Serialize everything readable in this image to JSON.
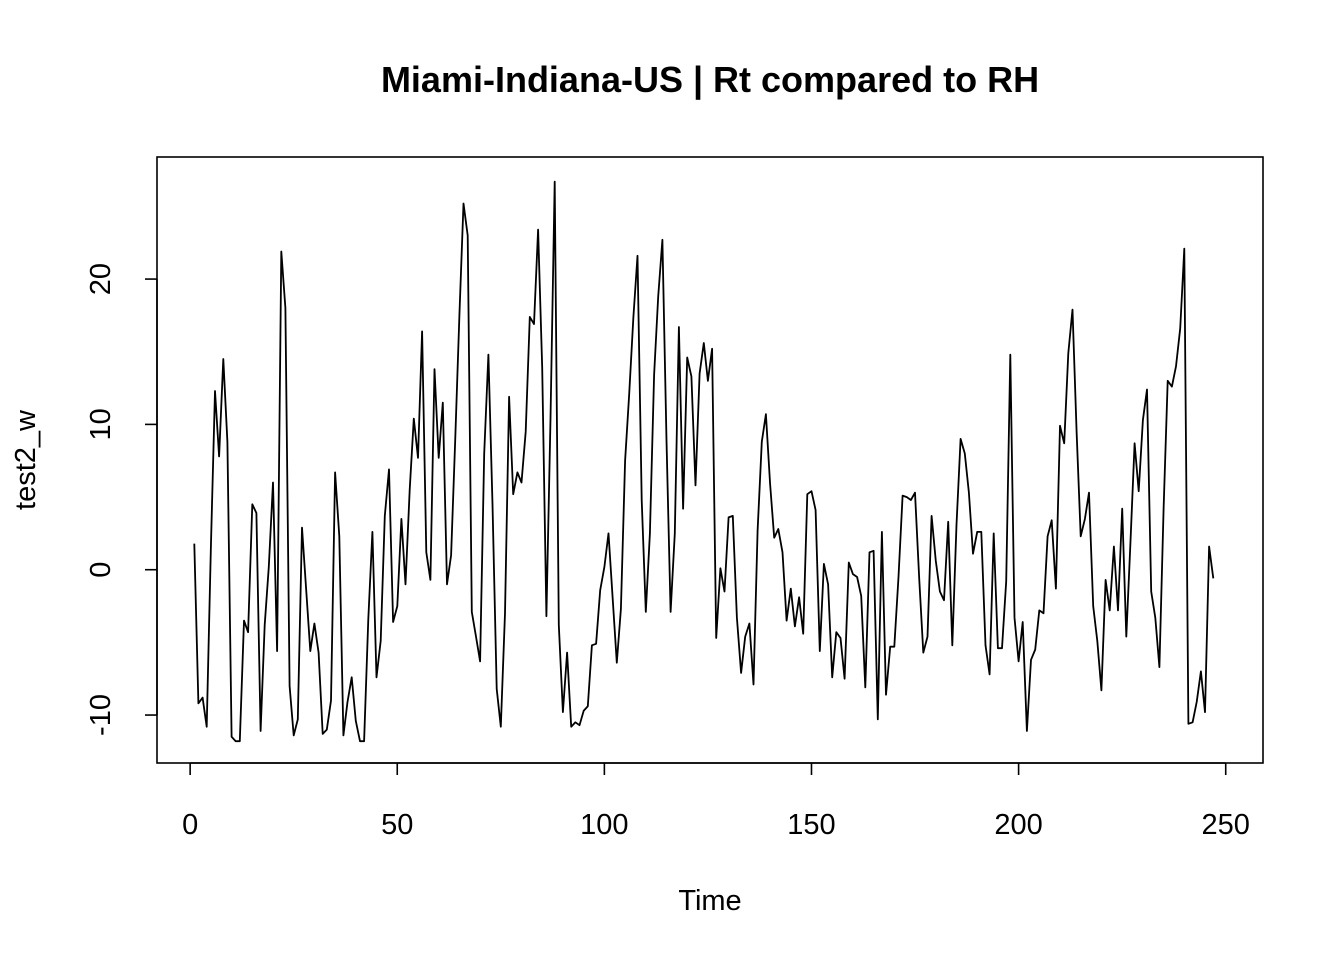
{
  "chart_data": {
    "type": "line",
    "title": "Miami-Indiana-US | Rt compared to RH",
    "xlabel": "Time",
    "ylabel": "test2_w",
    "xlim": [
      -8,
      259
    ],
    "ylim": [
      -13.3,
      28.4
    ],
    "xticks": [
      0,
      50,
      100,
      150,
      200,
      250
    ],
    "yticks": [
      -10,
      0,
      10,
      20
    ],
    "grid": false,
    "legend": "none",
    "line_color": "#000000",
    "series": [
      {
        "x_start": 1,
        "values": [
          1.8,
          -9.2,
          -8.8,
          -10.8,
          1.6,
          12.3,
          7.8,
          14.5,
          8.8,
          -11.5,
          -11.8,
          -11.8,
          -3.5,
          -4.3,
          4.5,
          3.9,
          -11.1,
          -3.8,
          0.2,
          6.0,
          -5.6,
          21.9,
          18.0,
          -8.0,
          -11.4,
          -10.3,
          2.9,
          -1.3,
          -5.6,
          -3.7,
          -5.7,
          -11.3,
          -11.0,
          -9.0,
          6.7,
          2.3,
          -11.4,
          -9.1,
          -7.4,
          -10.4,
          -11.8,
          -11.8,
          -3.4,
          2.6,
          -7.4,
          -4.9,
          3.7,
          6.9,
          -3.6,
          -2.5,
          3.5,
          -1.0,
          5.5,
          10.4,
          7.7,
          16.4,
          1.2,
          -0.7,
          13.8,
          7.7,
          11.5,
          -1.0,
          1.0,
          8.9,
          17.5,
          25.2,
          23.0,
          -2.9,
          -4.6,
          -6.3,
          8.0,
          14.8,
          4.5,
          -8.2,
          -10.8,
          -3.0,
          11.9,
          5.2,
          6.7,
          6.0,
          9.5,
          17.4,
          16.9,
          23.4,
          13.9,
          -3.2,
          10.4,
          26.7,
          -3.8,
          -9.8,
          -5.7,
          -10.8,
          -10.5,
          -10.7,
          -9.7,
          -9.4,
          -5.2,
          -5.1,
          -1.4,
          0.2,
          2.5,
          -2.0,
          -6.4,
          -2.7,
          7.5,
          12.1,
          17.4,
          21.6,
          4.8,
          -2.9,
          2.5,
          13.4,
          18.8,
          22.7,
          8.9,
          -2.9,
          2.5,
          16.7,
          4.2,
          14.6,
          13.3,
          5.8,
          13.5,
          15.6,
          13.0,
          15.2,
          -4.7,
          0.1,
          -1.5,
          3.6,
          3.7,
          -3.3,
          -7.1,
          -4.6,
          -3.7,
          -7.9,
          2.7,
          8.8,
          10.7,
          5.9,
          2.2,
          2.8,
          1.2,
          -3.5,
          -1.3,
          -3.9,
          -1.9,
          -4.4,
          5.2,
          5.4,
          4.1,
          -5.6,
          0.4,
          -1.0,
          -7.4,
          -4.3,
          -4.7,
          -7.5,
          0.5,
          -0.3,
          -0.5,
          -1.8,
          -8.1,
          1.2,
          1.3,
          -10.3,
          2.6,
          -8.6,
          -5.3,
          -5.3,
          -0.5,
          5.1,
          5.0,
          4.8,
          5.3,
          -0.6,
          -5.7,
          -4.6,
          3.7,
          0.6,
          -1.5,
          -2.1,
          3.3,
          -5.2,
          3.1,
          9.0,
          8.0,
          5.3,
          1.1,
          2.6,
          2.6,
          -5.2,
          -7.2,
          2.5,
          -5.4,
          -5.4,
          -0.8,
          14.8,
          -3.3,
          -6.3,
          -3.6,
          -11.1,
          -6.2,
          -5.5,
          -2.8,
          -3.0,
          2.3,
          3.4,
          -1.3,
          9.9,
          8.7,
          14.9,
          17.9,
          9.5,
          2.3,
          3.5,
          5.3,
          -2.5,
          -4.9,
          -8.3,
          -0.7,
          -2.8,
          1.6,
          -2.8,
          4.2,
          -4.6,
          1.8,
          8.7,
          5.4,
          10.3,
          12.4,
          -1.5,
          -3.3,
          -6.7,
          4.2,
          13.0,
          12.6,
          14.0,
          16.6,
          22.1,
          -10.6,
          -10.5,
          -9.1,
          -7.0,
          -9.8,
          1.6,
          -0.6
        ]
      }
    ]
  }
}
